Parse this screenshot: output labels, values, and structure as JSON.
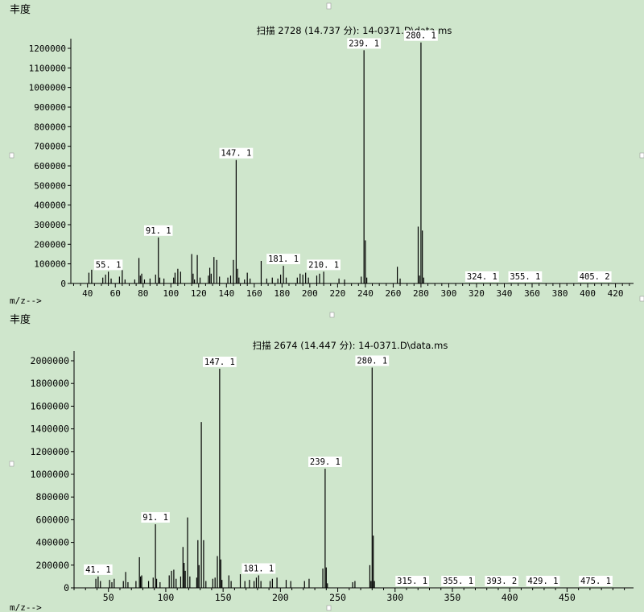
{
  "charts": [
    {
      "ylabel": "丰度",
      "xlabel": "m/z-->",
      "title": "扫描 2728 (14.737 分): 14-0371.D\\data.ms",
      "chart_data": {
        "type": "bar",
        "title": "扫描 2728 (14.737 分): 14-0371.D\\data.ms",
        "xlabel": "m/z-->",
        "ylabel": "丰度",
        "xlim": [
          28,
          433
        ],
        "ylim": [
          0,
          1200000
        ],
        "yticks": [
          0,
          100000,
          200000,
          300000,
          400000,
          500000,
          600000,
          700000,
          800000,
          900000,
          1000000,
          1100000,
          1200000
        ],
        "xticks": [
          40,
          60,
          80,
          100,
          120,
          140,
          160,
          180,
          200,
          220,
          240,
          260,
          280,
          300,
          320,
          340,
          360,
          380,
          400,
          420
        ],
        "peaks": [
          {
            "x": 41,
            "y": 55000
          },
          {
            "x": 43,
            "y": 70000
          },
          {
            "x": 51,
            "y": 30000
          },
          {
            "x": 53,
            "y": 45000
          },
          {
            "x": 55,
            "y": 60000
          },
          {
            "x": 57,
            "y": 25000
          },
          {
            "x": 63,
            "y": 35000
          },
          {
            "x": 65,
            "y": 70000
          },
          {
            "x": 67,
            "y": 20000
          },
          {
            "x": 74,
            "y": 20000
          },
          {
            "x": 77,
            "y": 130000
          },
          {
            "x": 78,
            "y": 40000
          },
          {
            "x": 79,
            "y": 50000
          },
          {
            "x": 81,
            "y": 20000
          },
          {
            "x": 85,
            "y": 25000
          },
          {
            "x": 89,
            "y": 45000
          },
          {
            "x": 91,
            "y": 235000
          },
          {
            "x": 92,
            "y": 30000
          },
          {
            "x": 95,
            "y": 25000
          },
          {
            "x": 102,
            "y": 30000
          },
          {
            "x": 103,
            "y": 55000
          },
          {
            "x": 105,
            "y": 75000
          },
          {
            "x": 107,
            "y": 60000
          },
          {
            "x": 115,
            "y": 150000
          },
          {
            "x": 116,
            "y": 50000
          },
          {
            "x": 117,
            "y": 20000
          },
          {
            "x": 119,
            "y": 145000
          },
          {
            "x": 121,
            "y": 30000
          },
          {
            "x": 127,
            "y": 40000
          },
          {
            "x": 128,
            "y": 80000
          },
          {
            "x": 129,
            "y": 50000
          },
          {
            "x": 131,
            "y": 135000
          },
          {
            "x": 133,
            "y": 120000
          },
          {
            "x": 135,
            "y": 35000
          },
          {
            "x": 141,
            "y": 30000
          },
          {
            "x": 143,
            "y": 40000
          },
          {
            "x": 145,
            "y": 120000
          },
          {
            "x": 147,
            "y": 630000
          },
          {
            "x": 148,
            "y": 75000
          },
          {
            "x": 149,
            "y": 30000
          },
          {
            "x": 153,
            "y": 20000
          },
          {
            "x": 155,
            "y": 55000
          },
          {
            "x": 157,
            "y": 25000
          },
          {
            "x": 165,
            "y": 115000
          },
          {
            "x": 169,
            "y": 25000
          },
          {
            "x": 173,
            "y": 30000
          },
          {
            "x": 177,
            "y": 25000
          },
          {
            "x": 179,
            "y": 45000
          },
          {
            "x": 181,
            "y": 90000
          },
          {
            "x": 183,
            "y": 30000
          },
          {
            "x": 191,
            "y": 30000
          },
          {
            "x": 193,
            "y": 50000
          },
          {
            "x": 195,
            "y": 45000
          },
          {
            "x": 197,
            "y": 55000
          },
          {
            "x": 199,
            "y": 30000
          },
          {
            "x": 205,
            "y": 40000
          },
          {
            "x": 207,
            "y": 50000
          },
          {
            "x": 210,
            "y": 60000
          },
          {
            "x": 221,
            "y": 25000
          },
          {
            "x": 225,
            "y": 20000
          },
          {
            "x": 237,
            "y": 35000
          },
          {
            "x": 239,
            "y": 1190000
          },
          {
            "x": 240,
            "y": 220000
          },
          {
            "x": 241,
            "y": 30000
          },
          {
            "x": 263,
            "y": 85000
          },
          {
            "x": 265,
            "y": 25000
          },
          {
            "x": 278,
            "y": 290000
          },
          {
            "x": 279,
            "y": 40000
          },
          {
            "x": 280,
            "y": 1230000
          },
          {
            "x": 281,
            "y": 270000
          },
          {
            "x": 282,
            "y": 30000
          }
        ],
        "peak_labels": [
          {
            "x": 55,
            "text": "55. 1"
          },
          {
            "x": 91,
            "text": "91. 1"
          },
          {
            "x": 147,
            "text": "147. 1"
          },
          {
            "x": 181,
            "text": "181. 1"
          },
          {
            "x": 210,
            "text": "210. 1"
          },
          {
            "x": 239,
            "text": "239. 1"
          },
          {
            "x": 280,
            "text": "280. 1"
          },
          {
            "x": 324,
            "text": "324. 1"
          },
          {
            "x": 355,
            "text": "355. 1"
          },
          {
            "x": 405,
            "text": "405. 2"
          }
        ]
      }
    },
    {
      "ylabel": "丰度",
      "xlabel": "m/z-->",
      "title": "扫描 2674 (14.447 分): 14-0371.D\\data.ms",
      "chart_data": {
        "type": "bar",
        "title": "扫描 2674 (14.447 分): 14-0371.D\\data.ms",
        "xlabel": "m/z-->",
        "ylabel": "丰度",
        "xlim": [
          20,
          508
        ],
        "ylim": [
          0,
          2000000
        ],
        "yticks": [
          0,
          200000,
          400000,
          600000,
          800000,
          1000000,
          1200000,
          1400000,
          1600000,
          1800000,
          2000000
        ],
        "xticks": [
          50,
          100,
          150,
          200,
          250,
          300,
          350,
          400,
          450
        ],
        "peaks": [
          {
            "x": 39,
            "y": 80000
          },
          {
            "x": 41,
            "y": 100000
          },
          {
            "x": 43,
            "y": 60000
          },
          {
            "x": 51,
            "y": 70000
          },
          {
            "x": 53,
            "y": 50000
          },
          {
            "x": 55,
            "y": 80000
          },
          {
            "x": 63,
            "y": 60000
          },
          {
            "x": 65,
            "y": 140000
          },
          {
            "x": 67,
            "y": 50000
          },
          {
            "x": 74,
            "y": 60000
          },
          {
            "x": 77,
            "y": 270000
          },
          {
            "x": 78,
            "y": 100000
          },
          {
            "x": 79,
            "y": 110000
          },
          {
            "x": 85,
            "y": 60000
          },
          {
            "x": 89,
            "y": 90000
          },
          {
            "x": 91,
            "y": 560000
          },
          {
            "x": 92,
            "y": 80000
          },
          {
            "x": 95,
            "y": 50000
          },
          {
            "x": 103,
            "y": 110000
          },
          {
            "x": 105,
            "y": 150000
          },
          {
            "x": 107,
            "y": 160000
          },
          {
            "x": 109,
            "y": 80000
          },
          {
            "x": 113,
            "y": 100000
          },
          {
            "x": 115,
            "y": 360000
          },
          {
            "x": 116,
            "y": 220000
          },
          {
            "x": 117,
            "y": 150000
          },
          {
            "x": 119,
            "y": 620000
          },
          {
            "x": 121,
            "y": 100000
          },
          {
            "x": 127,
            "y": 90000
          },
          {
            "x": 128,
            "y": 420000
          },
          {
            "x": 129,
            "y": 200000
          },
          {
            "x": 131,
            "y": 1460000
          },
          {
            "x": 133,
            "y": 420000
          },
          {
            "x": 135,
            "y": 60000
          },
          {
            "x": 141,
            "y": 80000
          },
          {
            "x": 143,
            "y": 90000
          },
          {
            "x": 145,
            "y": 280000
          },
          {
            "x": 147,
            "y": 1930000
          },
          {
            "x": 148,
            "y": 250000
          },
          {
            "x": 149,
            "y": 70000
          },
          {
            "x": 155,
            "y": 110000
          },
          {
            "x": 157,
            "y": 60000
          },
          {
            "x": 165,
            "y": 120000
          },
          {
            "x": 169,
            "y": 60000
          },
          {
            "x": 173,
            "y": 70000
          },
          {
            "x": 177,
            "y": 60000
          },
          {
            "x": 179,
            "y": 90000
          },
          {
            "x": 181,
            "y": 110000
          },
          {
            "x": 183,
            "y": 60000
          },
          {
            "x": 191,
            "y": 60000
          },
          {
            "x": 193,
            "y": 80000
          },
          {
            "x": 197,
            "y": 90000
          },
          {
            "x": 205,
            "y": 70000
          },
          {
            "x": 209,
            "y": 60000
          },
          {
            "x": 221,
            "y": 60000
          },
          {
            "x": 225,
            "y": 80000
          },
          {
            "x": 237,
            "y": 170000
          },
          {
            "x": 239,
            "y": 1050000
          },
          {
            "x": 240,
            "y": 180000
          },
          {
            "x": 241,
            "y": 40000
          },
          {
            "x": 263,
            "y": 50000
          },
          {
            "x": 265,
            "y": 60000
          },
          {
            "x": 278,
            "y": 200000
          },
          {
            "x": 279,
            "y": 60000
          },
          {
            "x": 280,
            "y": 1940000
          },
          {
            "x": 281,
            "y": 460000
          },
          {
            "x": 282,
            "y": 60000
          }
        ],
        "peak_labels": [
          {
            "x": 41,
            "text": "41. 1"
          },
          {
            "x": 91,
            "text": "91. 1"
          },
          {
            "x": 147,
            "text": "147. 1"
          },
          {
            "x": 181,
            "text": "181. 1"
          },
          {
            "x": 239,
            "text": "239. 1"
          },
          {
            "x": 280,
            "text": "280. 1"
          },
          {
            "x": 315,
            "text": "315. 1"
          },
          {
            "x": 355,
            "text": "355. 1"
          },
          {
            "x": 393,
            "text": "393. 2"
          },
          {
            "x": 429,
            "text": "429. 1"
          },
          {
            "x": 475,
            "text": "475. 1"
          }
        ]
      }
    }
  ]
}
